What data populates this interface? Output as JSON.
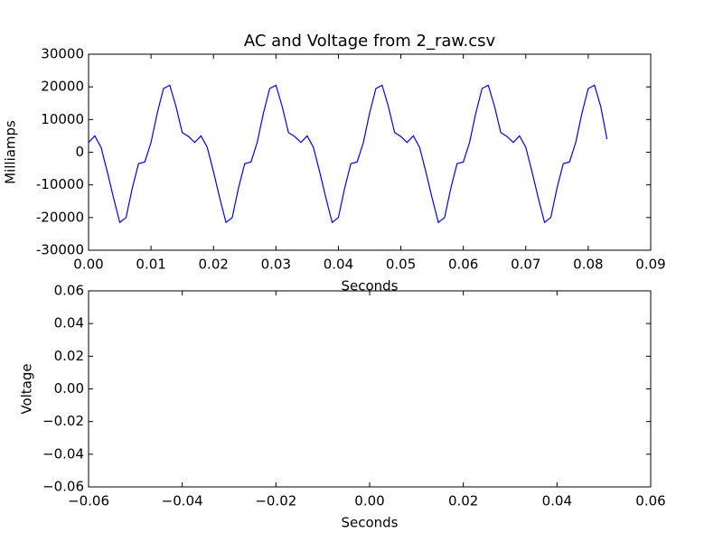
{
  "chart_data": [
    {
      "type": "line",
      "title": "AC and Voltage from 2_raw.csv",
      "x_label": "Seconds",
      "y_label": "Milliamps",
      "x": [
        0,
        0.001,
        0.002,
        0.003,
        0.004,
        0.005,
        0.006,
        0.007,
        0.008,
        0.009,
        0.01,
        0.011,
        0.012,
        0.013,
        0.014,
        0.015,
        0.016,
        0.017,
        0.018,
        0.019,
        0.02,
        0.021,
        0.022,
        0.023,
        0.024,
        0.025,
        0.026,
        0.027,
        0.028,
        0.029,
        0.03,
        0.031,
        0.032,
        0.033,
        0.034,
        0.035,
        0.036,
        0.037,
        0.038,
        0.039,
        0.04,
        0.041,
        0.042,
        0.043,
        0.044,
        0.045,
        0.046,
        0.047,
        0.048,
        0.049,
        0.05,
        0.051,
        0.052,
        0.053,
        0.054,
        0.055,
        0.056,
        0.057,
        0.058,
        0.059,
        0.06,
        0.061,
        0.062,
        0.063,
        0.064,
        0.065,
        0.066,
        0.067,
        0.068,
        0.069,
        0.07,
        0.071,
        0.072,
        0.073,
        0.074,
        0.075,
        0.076,
        0.077,
        0.078,
        0.079,
        0.08,
        0.081,
        0.082,
        0.083
      ],
      "series": [
        {
          "color": "#0000ff",
          "values": [
            3000,
            5000,
            1500,
            -6000,
            -14000,
            -21500,
            -20000,
            -11000,
            -3500,
            -3000,
            3000,
            12000,
            19500,
            20500,
            14000,
            6000,
            4800,
            3000,
            5000,
            1500,
            -6000,
            -14000,
            -21500,
            -20000,
            -11000,
            -3500,
            -3000,
            3000,
            12000,
            19500,
            20500,
            14000,
            6000,
            4800,
            3000,
            5000,
            1500,
            -6000,
            -14000,
            -21500,
            -20000,
            -11000,
            -3500,
            -3000,
            3000,
            12000,
            19500,
            20500,
            14000,
            6000,
            4800,
            3000,
            5000,
            1500,
            -6000,
            -14000,
            -21500,
            -20000,
            -11000,
            -3500,
            -3000,
            3000,
            12000,
            19500,
            20500,
            14000,
            6000,
            4800,
            3000,
            5000,
            1500,
            -6000,
            -14000,
            -21500,
            -20000,
            -11000,
            -3500,
            -3000,
            3000,
            12000,
            19500,
            20500,
            14000,
            4000
          ]
        }
      ],
      "xlim": [
        0,
        0.09
      ],
      "xticks": [
        {
          "value": 0,
          "label": "0.00"
        },
        {
          "value": 0.01,
          "label": "0.01"
        },
        {
          "value": 0.02,
          "label": "0.02"
        },
        {
          "value": 0.03,
          "label": "0.03"
        },
        {
          "value": 0.04,
          "label": "0.04"
        },
        {
          "value": 0.05,
          "label": "0.05"
        },
        {
          "value": 0.06,
          "label": "0.06"
        },
        {
          "value": 0.07,
          "label": "0.07"
        },
        {
          "value": 0.08,
          "label": "0.08"
        },
        {
          "value": 0.09,
          "label": "0.09"
        }
      ],
      "ylim": [
        -30000,
        30000
      ],
      "yticks": [
        -30000,
        -20000,
        -10000,
        0,
        10000,
        20000,
        30000
      ]
    },
    {
      "type": "line",
      "x_label": "Seconds",
      "y_label": "Voltage",
      "series": [],
      "xlim": [
        -0.06,
        0.06
      ],
      "xticks": [
        {
          "value": -0.06,
          "label": "−0.06"
        },
        {
          "value": -0.04,
          "label": "−0.04"
        },
        {
          "value": -0.02,
          "label": "−0.02"
        },
        {
          "value": 0,
          "label": "0.00"
        },
        {
          "value": 0.02,
          "label": "0.02"
        },
        {
          "value": 0.04,
          "label": "0.04"
        },
        {
          "value": 0.06,
          "label": "0.06"
        }
      ],
      "ylim": [
        -0.06,
        0.06
      ],
      "yticks": [
        {
          "value": -0.06,
          "label": "−0.06"
        },
        {
          "value": -0.04,
          "label": "−0.04"
        },
        {
          "value": -0.02,
          "label": "−0.02"
        },
        {
          "value": 0,
          "label": "0.00"
        },
        {
          "value": 0.02,
          "label": "0.02"
        },
        {
          "value": 0.04,
          "label": "0.04"
        },
        {
          "value": 0.06,
          "label": "0.06"
        }
      ]
    }
  ]
}
